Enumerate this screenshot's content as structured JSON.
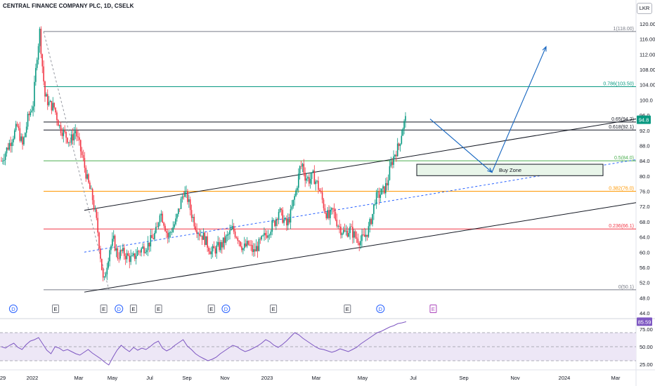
{
  "title": "CENTRAL FINANCE COMPANY PLC, 1D, CSELK",
  "currency": "LKR",
  "chart_data": {
    "type": "candlestick",
    "symbol": "CENTRAL FINANCE COMPANY PLC",
    "interval": "1D",
    "exchange": "CSELK",
    "last_price": "94.8",
    "price_axis": {
      "min": 44,
      "max": 122,
      "ticks": [
        "120.00",
        "116.00",
        "112.00",
        "108.00",
        "104.00",
        "100.0",
        "96.0",
        "92.0",
        "88.0",
        "84.0",
        "80.0",
        "76.0",
        "72.0",
        "68.0",
        "64.0",
        "60.0",
        "56.0",
        "52.0",
        "48.0",
        "44.0"
      ]
    },
    "time_axis": {
      "ticks": [
        "29",
        "2022",
        "Mar",
        "May",
        "Jul",
        "Sep",
        "Nov",
        "2023",
        "Mar",
        "May",
        "Jul",
        "Sep",
        "Nov",
        "2024",
        "Mar"
      ]
    },
    "fib_levels": [
      {
        "label": "1(118.00)",
        "value": 118.0,
        "color": "#787b86"
      },
      {
        "label": "0.786(103.50)",
        "value": 103.5,
        "color": "#089981"
      },
      {
        "label": "0.65(94.2)",
        "value": 94.2,
        "color": "#131722"
      },
      {
        "label": "0.618(92.1)",
        "value": 92.1,
        "color": "#131722"
      },
      {
        "label": "0.5(84.0)",
        "value": 84.0,
        "color": "#4caf50"
      },
      {
        "label": "0.382(76.0)",
        "value": 76.0,
        "color": "#ff9800"
      },
      {
        "label": "0.236(66.1)",
        "value": 66.1,
        "color": "#f23645"
      },
      {
        "label": "0(50.1)",
        "value": 50.1,
        "color": "#787b86"
      }
    ],
    "price_path_days": [
      [
        0,
        84
      ],
      [
        8,
        87
      ],
      [
        16,
        90
      ],
      [
        24,
        93
      ],
      [
        32,
        88
      ],
      [
        40,
        95
      ],
      [
        48,
        99
      ],
      [
        54,
        112
      ],
      [
        58,
        118
      ],
      [
        62,
        109
      ],
      [
        66,
        101
      ],
      [
        72,
        99
      ],
      [
        80,
        98
      ],
      [
        88,
        93
      ],
      [
        96,
        91
      ],
      [
        104,
        89
      ],
      [
        112,
        92
      ],
      [
        118,
        88
      ],
      [
        124,
        84
      ],
      [
        130,
        79
      ],
      [
        138,
        74
      ],
      [
        145,
        67
      ],
      [
        150,
        59
      ],
      [
        155,
        51
      ],
      [
        158,
        55
      ],
      [
        164,
        61
      ],
      [
        170,
        63
      ],
      [
        176,
        59
      ],
      [
        182,
        60
      ],
      [
        190,
        59
      ],
      [
        198,
        58
      ],
      [
        206,
        60
      ],
      [
        214,
        61
      ],
      [
        222,
        62
      ],
      [
        230,
        64
      ],
      [
        236,
        66
      ],
      [
        240,
        71
      ],
      [
        246,
        68
      ],
      [
        252,
        64
      ],
      [
        258,
        66
      ],
      [
        264,
        68
      ],
      [
        270,
        72
      ],
      [
        276,
        76
      ],
      [
        282,
        74
      ],
      [
        288,
        70
      ],
      [
        294,
        67
      ],
      [
        300,
        65
      ],
      [
        306,
        64
      ],
      [
        312,
        62
      ],
      [
        318,
        60
      ],
      [
        326,
        61
      ],
      [
        334,
        62
      ],
      [
        342,
        64
      ],
      [
        350,
        66
      ],
      [
        358,
        64
      ],
      [
        366,
        61
      ],
      [
        374,
        62
      ],
      [
        382,
        60
      ],
      [
        390,
        62
      ],
      [
        398,
        64
      ],
      [
        406,
        66
      ],
      [
        414,
        68
      ],
      [
        420,
        71
      ],
      [
        426,
        69
      ],
      [
        432,
        67
      ],
      [
        438,
        70
      ],
      [
        446,
        76
      ],
      [
        452,
        82
      ],
      [
        456,
        83
      ],
      [
        460,
        80
      ],
      [
        466,
        79
      ],
      [
        472,
        80
      ],
      [
        478,
        78
      ],
      [
        484,
        75
      ],
      [
        490,
        71
      ],
      [
        496,
        69
      ],
      [
        502,
        71
      ],
      [
        508,
        68
      ],
      [
        514,
        66
      ],
      [
        520,
        65
      ],
      [
        528,
        66
      ],
      [
        536,
        64
      ],
      [
        544,
        63
      ],
      [
        550,
        64
      ],
      [
        556,
        66
      ],
      [
        562,
        70
      ],
      [
        566,
        74
      ],
      [
        572,
        75
      ],
      [
        578,
        76
      ],
      [
        584,
        78
      ],
      [
        590,
        83
      ],
      [
        596,
        86
      ],
      [
        602,
        88
      ],
      [
        608,
        93
      ],
      [
        613,
        95.3
      ]
    ],
    "channel_upper": [
      [
        120,
        71
      ],
      [
        905,
        95
      ]
    ],
    "channel_lower": [
      [
        120,
        49.5
      ],
      [
        905,
        73
      ]
    ],
    "channel_mid": [
      [
        120,
        60
      ],
      [
        905,
        84.3
      ]
    ],
    "buy_zone": {
      "label": "Buy Zone",
      "price_top": 83.1,
      "price_bottom": 80.1
    },
    "projection_path": [
      [
        612,
        95
      ],
      [
        700,
        81
      ],
      [
        777,
        114
      ]
    ],
    "rsi": {
      "last": "85.59",
      "ticks": [
        "75.00",
        "50.00",
        "25.00"
      ],
      "levels": [
        70,
        50,
        30
      ],
      "values": [
        50,
        48,
        52,
        55,
        49,
        46,
        53,
        58,
        60,
        63,
        54,
        45,
        40,
        50,
        48,
        44,
        46,
        43,
        40,
        38,
        42,
        46,
        41,
        37,
        33,
        28,
        24,
        35,
        45,
        52,
        47,
        43,
        49,
        45,
        48,
        46,
        50,
        55,
        58,
        48,
        44,
        47,
        52,
        56,
        60,
        51,
        46,
        40,
        36,
        33,
        30,
        32,
        35,
        40,
        44,
        48,
        52,
        50,
        46,
        43,
        45,
        48,
        51,
        55,
        60,
        57,
        52,
        49,
        53,
        58,
        64,
        70,
        67,
        62,
        58,
        54,
        50,
        47,
        46,
        44,
        42,
        44,
        47,
        45,
        43,
        46,
        49,
        54,
        58,
        62,
        66,
        70,
        72,
        75,
        78,
        80,
        83,
        84,
        85.59
      ]
    },
    "event_markers": [
      {
        "label": "D",
        "day": 18,
        "type": "dividend"
      },
      {
        "label": "E",
        "day": 82,
        "type": "earnings"
      },
      {
        "label": "E",
        "day": 155,
        "type": "earnings"
      },
      {
        "label": "D",
        "day": 178,
        "type": "dividend"
      },
      {
        "label": "E",
        "day": 200,
        "type": "earnings"
      },
      {
        "label": "E",
        "day": 238,
        "type": "earnings"
      },
      {
        "label": "E",
        "day": 318,
        "type": "earnings"
      },
      {
        "label": "D",
        "day": 340,
        "type": "dividend"
      },
      {
        "label": "E",
        "day": 412,
        "type": "earnings"
      },
      {
        "label": "E",
        "day": 524,
        "type": "earnings"
      },
      {
        "label": "D",
        "day": 574,
        "type": "dividend"
      },
      {
        "label": "E",
        "day": 654,
        "type": "future-earnings"
      }
    ]
  },
  "colors": {
    "up": "#089981",
    "down": "#f23645",
    "rsi_line": "#7e57c2",
    "rsi_band": "#ede7f6",
    "channel": "#131722",
    "mid": "#2962ff",
    "arrow": "#1565c0",
    "last_price_bg": "#089981"
  }
}
